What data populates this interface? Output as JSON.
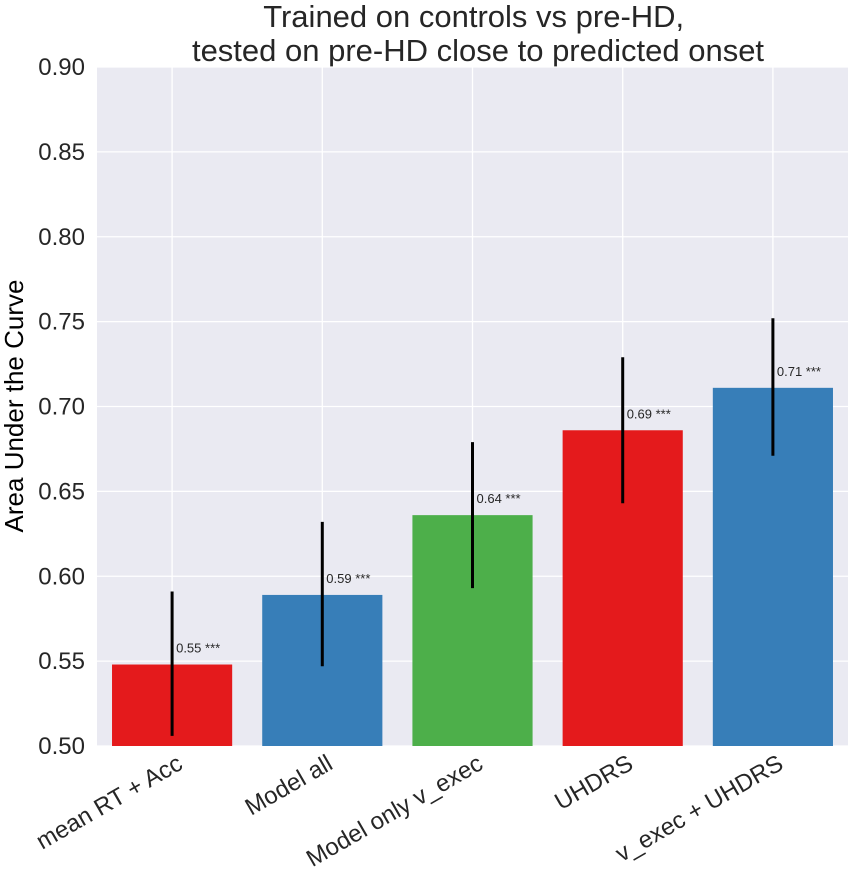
{
  "chart_data": {
    "type": "bar",
    "title": "Trained on controls vs pre-HD,\ntested on pre-HD close to predicted onset",
    "xlabel": "",
    "ylabel": "Area Under the Curve",
    "ylim": [
      0.5,
      0.9
    ],
    "yticks": [
      "0.50",
      "0.55",
      "0.60",
      "0.65",
      "0.70",
      "0.75",
      "0.80",
      "0.85",
      "0.90"
    ],
    "grid": true,
    "categories": [
      "mean RT + Acc",
      "Model all",
      "Model only v_exec",
      "UHDRS",
      "v_exec + UHDRS"
    ],
    "values": [
      0.548,
      0.589,
      0.636,
      0.686,
      0.711
    ],
    "error_low": [
      0.506,
      0.547,
      0.593,
      0.643,
      0.671
    ],
    "error_high": [
      0.591,
      0.632,
      0.679,
      0.729,
      0.752
    ],
    "bar_labels": [
      "0.55 ***",
      "0.59 ***",
      "0.64 ***",
      "0.69 ***",
      "0.71 ***"
    ],
    "colors": [
      "#e41a1c",
      "#377eb8",
      "#4daf4a",
      "#e41a1c",
      "#377eb8"
    ],
    "background_color": "#eaeaf2",
    "grid_color": "#ffffff",
    "error_color": "#000000"
  }
}
